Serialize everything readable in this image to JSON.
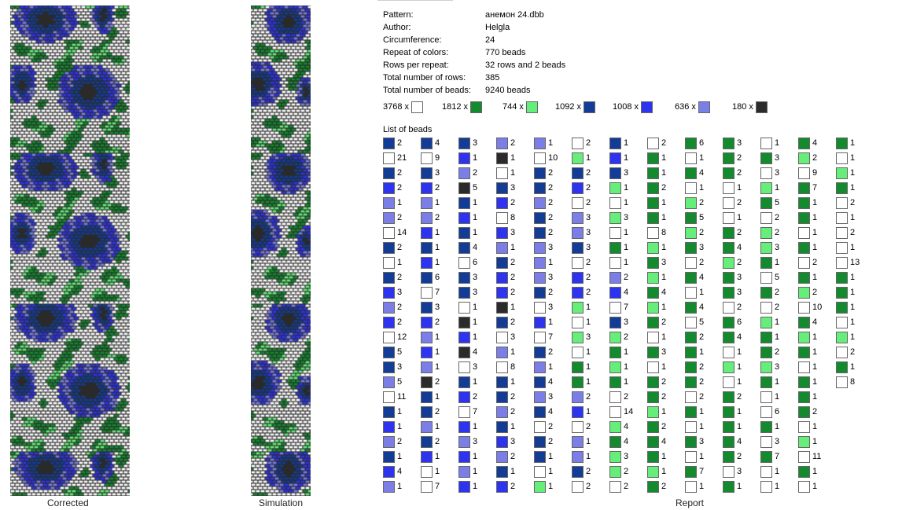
{
  "palette": [
    "#ffffff",
    "#138a2e",
    "#66ee7a",
    "#123c96",
    "#2d33ee",
    "#7a7ee6",
    "#2b2b2b"
  ],
  "captions": {
    "corrected": "Corrected",
    "simulation": "Simulation",
    "report": "Report"
  },
  "info": [
    {
      "label": "Pattern:",
      "value": "анемон 24.dbb"
    },
    {
      "label": "Author:",
      "value": "Helgla"
    },
    {
      "label": "Circumference:",
      "value": "24"
    },
    {
      "label": "Repeat of colors:",
      "value": "770 beads"
    },
    {
      "label": "Rows per repeat:",
      "value": "32 rows and 2 beads"
    },
    {
      "label": "Total number of rows:",
      "value": "385"
    },
    {
      "label": "Total number of beads:",
      "value": "9240 beads"
    }
  ],
  "color_summary": [
    {
      "count": "3768 x",
      "color": 0
    },
    {
      "count": "1812 x",
      "color": 1
    },
    {
      "count": "744 x",
      "color": 2
    },
    {
      "count": "1092 x",
      "color": 3
    },
    {
      "count": "1008 x",
      "color": 4
    },
    {
      "count": "636 x",
      "color": 5
    },
    {
      "count": "180 x",
      "color": 6
    }
  ],
  "list_title": "List of beads",
  "bead_list": [
    [
      [
        3,
        "2"
      ],
      [
        0,
        "21"
      ],
      [
        3,
        "2"
      ],
      [
        4,
        "2"
      ],
      [
        5,
        "1"
      ],
      [
        5,
        "2"
      ],
      [
        0,
        "14"
      ],
      [
        3,
        "2"
      ],
      [
        0,
        "1"
      ],
      [
        3,
        "2"
      ],
      [
        4,
        "3"
      ],
      [
        5,
        "2"
      ],
      [
        4,
        "2"
      ],
      [
        0,
        "12"
      ],
      [
        3,
        "5"
      ],
      [
        3,
        "3"
      ],
      [
        5,
        "5"
      ],
      [
        0,
        "11"
      ],
      [
        3,
        "1"
      ],
      [
        4,
        "1"
      ],
      [
        5,
        "2"
      ],
      [
        3,
        "1"
      ],
      [
        4,
        "4"
      ],
      [
        5,
        "1"
      ]
    ],
    [
      [
        3,
        "4"
      ],
      [
        0,
        "9"
      ],
      [
        3,
        "3"
      ],
      [
        4,
        "2"
      ],
      [
        5,
        "1"
      ],
      [
        5,
        "2"
      ],
      [
        4,
        "1"
      ],
      [
        3,
        "1"
      ],
      [
        4,
        "1"
      ],
      [
        3,
        "6"
      ],
      [
        0,
        "7"
      ],
      [
        3,
        "3"
      ],
      [
        4,
        "2"
      ],
      [
        5,
        "1"
      ],
      [
        4,
        "1"
      ],
      [
        5,
        "1"
      ],
      [
        6,
        "2"
      ],
      [
        3,
        "1"
      ],
      [
        3,
        "2"
      ],
      [
        5,
        "1"
      ],
      [
        3,
        "2"
      ],
      [
        4,
        "1"
      ],
      [
        0,
        "1"
      ],
      [
        0,
        "7"
      ]
    ],
    [
      [
        3,
        "3"
      ],
      [
        4,
        "1"
      ],
      [
        5,
        "2"
      ],
      [
        6,
        "5"
      ],
      [
        3,
        "1"
      ],
      [
        4,
        "1"
      ],
      [
        3,
        "1"
      ],
      [
        3,
        "4"
      ],
      [
        0,
        "6"
      ],
      [
        3,
        "3"
      ],
      [
        3,
        "3"
      ],
      [
        0,
        "1"
      ],
      [
        6,
        "1"
      ],
      [
        4,
        "1"
      ],
      [
        6,
        "4"
      ],
      [
        0,
        "3"
      ],
      [
        3,
        "1"
      ],
      [
        4,
        "2"
      ],
      [
        0,
        "7"
      ],
      [
        4,
        "1"
      ],
      [
        5,
        "3"
      ],
      [
        4,
        "1"
      ],
      [
        5,
        "1"
      ],
      [
        4,
        "1"
      ]
    ],
    [
      [
        5,
        "2"
      ],
      [
        6,
        "1"
      ],
      [
        0,
        "1"
      ],
      [
        3,
        "3"
      ],
      [
        4,
        "2"
      ],
      [
        0,
        "8"
      ],
      [
        4,
        "3"
      ],
      [
        5,
        "1"
      ],
      [
        3,
        "2"
      ],
      [
        4,
        "2"
      ],
      [
        4,
        "2"
      ],
      [
        6,
        "1"
      ],
      [
        3,
        "2"
      ],
      [
        0,
        "3"
      ],
      [
        5,
        "1"
      ],
      [
        0,
        "8"
      ],
      [
        3,
        "1"
      ],
      [
        3,
        "2"
      ],
      [
        5,
        "2"
      ],
      [
        3,
        "1"
      ],
      [
        4,
        "3"
      ],
      [
        5,
        "2"
      ],
      [
        3,
        "1"
      ],
      [
        4,
        "2"
      ]
    ],
    [
      [
        5,
        "1"
      ],
      [
        0,
        "10"
      ],
      [
        3,
        "2"
      ],
      [
        3,
        "2"
      ],
      [
        5,
        "2"
      ],
      [
        3,
        "2"
      ],
      [
        3,
        "2"
      ],
      [
        5,
        "3"
      ],
      [
        5,
        "1"
      ],
      [
        5,
        "3"
      ],
      [
        3,
        "2"
      ],
      [
        0,
        "3"
      ],
      [
        4,
        "1"
      ],
      [
        0,
        "7"
      ],
      [
        3,
        "2"
      ],
      [
        5,
        "1"
      ],
      [
        3,
        "4"
      ],
      [
        5,
        "3"
      ],
      [
        3,
        "4"
      ],
      [
        0,
        "2"
      ],
      [
        3,
        "2"
      ],
      [
        3,
        "1"
      ],
      [
        0,
        "1"
      ],
      [
        2,
        "1"
      ]
    ],
    [
      [
        0,
        "2"
      ],
      [
        2,
        "1"
      ],
      [
        3,
        "2"
      ],
      [
        4,
        "2"
      ],
      [
        0,
        "2"
      ],
      [
        5,
        "3"
      ],
      [
        5,
        "3"
      ],
      [
        3,
        "3"
      ],
      [
        0,
        "2"
      ],
      [
        4,
        "2"
      ],
      [
        4,
        "2"
      ],
      [
        2,
        "1"
      ],
      [
        0,
        "1"
      ],
      [
        2,
        "3"
      ],
      [
        0,
        "1"
      ],
      [
        1,
        "1"
      ],
      [
        1,
        "1"
      ],
      [
        5,
        "2"
      ],
      [
        4,
        "1"
      ],
      [
        0,
        "2"
      ],
      [
        5,
        "1"
      ],
      [
        5,
        "1"
      ],
      [
        3,
        "2"
      ],
      [
        0,
        "2"
      ]
    ],
    [
      [
        3,
        "1"
      ],
      [
        4,
        "1"
      ],
      [
        3,
        "3"
      ],
      [
        2,
        "1"
      ],
      [
        0,
        "1"
      ],
      [
        2,
        "3"
      ],
      [
        0,
        "1"
      ],
      [
        1,
        "1"
      ],
      [
        0,
        "1"
      ],
      [
        5,
        "2"
      ],
      [
        4,
        "4"
      ],
      [
        0,
        "7"
      ],
      [
        3,
        "3"
      ],
      [
        2,
        "2"
      ],
      [
        1,
        "1"
      ],
      [
        2,
        "1"
      ],
      [
        1,
        "1"
      ],
      [
        0,
        "2"
      ],
      [
        0,
        "14"
      ],
      [
        2,
        "4"
      ],
      [
        1,
        "4"
      ],
      [
        2,
        "3"
      ],
      [
        2,
        "2"
      ],
      [
        0,
        "2"
      ]
    ],
    [
      [
        0,
        "2"
      ],
      [
        1,
        "1"
      ],
      [
        1,
        "1"
      ],
      [
        1,
        "2"
      ],
      [
        1,
        "1"
      ],
      [
        1,
        "1"
      ],
      [
        0,
        "8"
      ],
      [
        2,
        "1"
      ],
      [
        1,
        "3"
      ],
      [
        2,
        "1"
      ],
      [
        1,
        "4"
      ],
      [
        2,
        "1"
      ],
      [
        1,
        "2"
      ],
      [
        0,
        "1"
      ],
      [
        1,
        "3"
      ],
      [
        0,
        "1"
      ],
      [
        1,
        "2"
      ],
      [
        1,
        "2"
      ],
      [
        2,
        "1"
      ],
      [
        1,
        "2"
      ],
      [
        1,
        "4"
      ],
      [
        1,
        "1"
      ],
      [
        2,
        "1"
      ],
      [
        1,
        "2"
      ]
    ],
    [
      [
        1,
        "6"
      ],
      [
        0,
        "1"
      ],
      [
        1,
        "4"
      ],
      [
        0,
        "1"
      ],
      [
        2,
        "2"
      ],
      [
        1,
        "5"
      ],
      [
        2,
        "2"
      ],
      [
        1,
        "3"
      ],
      [
        0,
        "2"
      ],
      [
        1,
        "4"
      ],
      [
        0,
        "1"
      ],
      [
        1,
        "4"
      ],
      [
        0,
        "5"
      ],
      [
        1,
        "2"
      ],
      [
        1,
        "1"
      ],
      [
        1,
        "2"
      ],
      [
        1,
        "2"
      ],
      [
        0,
        "2"
      ],
      [
        1,
        "1"
      ],
      [
        0,
        "1"
      ],
      [
        1,
        "3"
      ],
      [
        0,
        "1"
      ],
      [
        1,
        "7"
      ],
      [
        0,
        "1"
      ]
    ],
    [
      [
        1,
        "3"
      ],
      [
        1,
        "2"
      ],
      [
        1,
        "2"
      ],
      [
        0,
        "1"
      ],
      [
        0,
        "2"
      ],
      [
        0,
        "1"
      ],
      [
        1,
        "2"
      ],
      [
        1,
        "4"
      ],
      [
        2,
        "2"
      ],
      [
        1,
        "3"
      ],
      [
        1,
        "3"
      ],
      [
        0,
        "2"
      ],
      [
        1,
        "6"
      ],
      [
        1,
        "4"
      ],
      [
        0,
        "1"
      ],
      [
        2,
        "1"
      ],
      [
        0,
        "1"
      ],
      [
        1,
        "2"
      ],
      [
        1,
        "1"
      ],
      [
        1,
        "1"
      ],
      [
        1,
        "4"
      ],
      [
        1,
        "2"
      ],
      [
        0,
        "3"
      ],
      [
        1,
        "1"
      ]
    ],
    [
      [
        0,
        "1"
      ],
      [
        1,
        "3"
      ],
      [
        0,
        "3"
      ],
      [
        2,
        "1"
      ],
      [
        1,
        "5"
      ],
      [
        0,
        "2"
      ],
      [
        2,
        "2"
      ],
      [
        2,
        "3"
      ],
      [
        1,
        "1"
      ],
      [
        0,
        "5"
      ],
      [
        1,
        "2"
      ],
      [
        0,
        "2"
      ],
      [
        2,
        "1"
      ],
      [
        1,
        "1"
      ],
      [
        1,
        "2"
      ],
      [
        2,
        "3"
      ],
      [
        1,
        "1"
      ],
      [
        0,
        "1"
      ],
      [
        0,
        "6"
      ],
      [
        1,
        "1"
      ],
      [
        0,
        "3"
      ],
      [
        1,
        "7"
      ],
      [
        0,
        "1"
      ],
      [
        0,
        "1"
      ]
    ],
    [
      [
        1,
        "4"
      ],
      [
        2,
        "2"
      ],
      [
        0,
        "9"
      ],
      [
        1,
        "7"
      ],
      [
        1,
        "1"
      ],
      [
        1,
        "1"
      ],
      [
        0,
        "1"
      ],
      [
        1,
        "1"
      ],
      [
        0,
        "2"
      ],
      [
        1,
        "1"
      ],
      [
        2,
        "2"
      ],
      [
        0,
        "10"
      ],
      [
        1,
        "4"
      ],
      [
        2,
        "1"
      ],
      [
        1,
        "1"
      ],
      [
        0,
        "1"
      ],
      [
        1,
        "1"
      ],
      [
        1,
        "1"
      ],
      [
        1,
        "2"
      ],
      [
        0,
        "1"
      ],
      [
        2,
        "1"
      ],
      [
        0,
        "11"
      ],
      [
        1,
        "1"
      ],
      [
        0,
        "1"
      ]
    ],
    [
      [
        1,
        "1"
      ],
      [
        0,
        "1"
      ],
      [
        2,
        "1"
      ],
      [
        1,
        "1"
      ],
      [
        0,
        "2"
      ],
      [
        0,
        "1"
      ],
      [
        0,
        "2"
      ],
      [
        0,
        "1"
      ],
      [
        0,
        "13"
      ],
      [
        1,
        "1"
      ],
      [
        1,
        "1"
      ],
      [
        1,
        "1"
      ],
      [
        0,
        "1"
      ],
      [
        2,
        "1"
      ],
      [
        0,
        "2"
      ],
      [
        1,
        "1"
      ],
      [
        0,
        "8"
      ]
    ]
  ]
}
